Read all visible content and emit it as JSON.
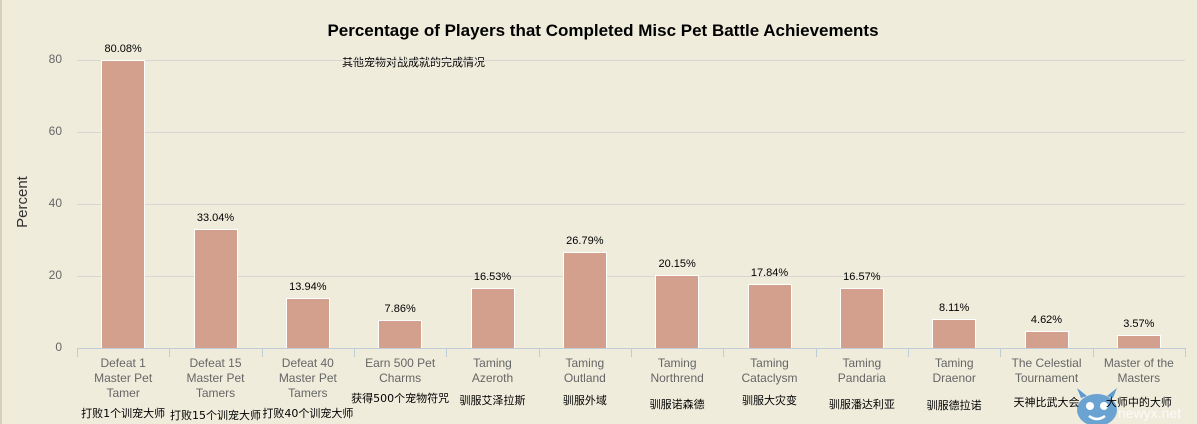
{
  "chart_data": {
    "type": "bar",
    "title": "Percentage of Players that Completed Misc Pet Battle Achievements",
    "subtitle": "其他宠物对战成就的完成情况",
    "xlabel": "",
    "ylabel": "Percent",
    "ylim": [
      0,
      80
    ],
    "yticks": [
      0,
      20,
      40,
      60,
      80
    ],
    "grid": true,
    "bar_color": "#d4a08e",
    "categories": [
      "Defeat 1 Master Pet Tamer",
      "Defeat 15 Master Pet Tamers",
      "Defeat 40 Master Pet Tamers",
      "Earn 500 Pet Charms",
      "Taming Azeroth",
      "Taming Outland",
      "Taming Northrend",
      "Taming Cataclysm",
      "Taming Pandaria",
      "Taming Draenor",
      "The Celestial Tournament",
      "Master of the Masters"
    ],
    "categories_cn": [
      "打败1个训宠大师",
      "打败15个训宠大师",
      "打败40个训宠大师",
      "获得500个宠物符咒",
      "驯服艾泽拉斯",
      "驯服外域",
      "驯服诺森德",
      "驯服大灾变",
      "驯服潘达利亚",
      "驯服德拉诺",
      "天神比武大会",
      "大师中的大师"
    ],
    "values": [
      80.08,
      33.04,
      13.94,
      7.86,
      16.53,
      26.79,
      20.15,
      17.84,
      16.57,
      8.11,
      4.62,
      3.57
    ],
    "value_labels": [
      "80.08%",
      "33.04%",
      "13.94%",
      "7.86%",
      "16.53%",
      "26.79%",
      "20.15%",
      "17.84%",
      "16.57%",
      "8.11%",
      "4.62%",
      "3.57%"
    ]
  },
  "cat_lines": [
    [
      "Defeat 1",
      "Master Pet",
      "Tamer"
    ],
    [
      "Defeat 15",
      "Master Pet",
      "Tamers"
    ],
    [
      "Defeat 40",
      "Master Pet",
      "Tamers"
    ],
    [
      "Earn 500 Pet",
      "Charms"
    ],
    [
      "Taming",
      "Azeroth"
    ],
    [
      "Taming",
      "Outland"
    ],
    [
      "Taming",
      "Northrend"
    ],
    [
      "Taming",
      "Cataclysm"
    ],
    [
      "Taming",
      "Pandaria"
    ],
    [
      "Taming",
      "Draenor"
    ],
    [
      "The Celestial",
      "Tournament"
    ],
    [
      "Master of the",
      "Masters"
    ]
  ],
  "cn_offsets": [
    405,
    407,
    405,
    390,
    392,
    392,
    396,
    392,
    396,
    397,
    394,
    394
  ],
  "watermark": "newyx.net"
}
